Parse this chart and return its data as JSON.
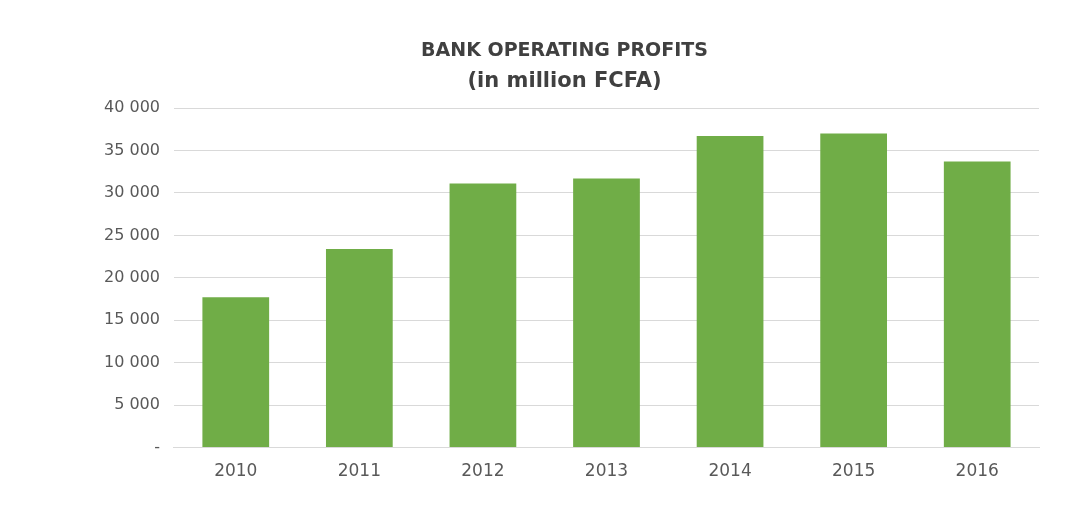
{
  "chart_data": {
    "type": "bar",
    "title": "BANK OPERATING PROFITS",
    "subtitle": "(in million FCFA)",
    "categories": [
      "2010",
      "2011",
      "2012",
      "2013",
      "2014",
      "2015",
      "2016"
    ],
    "values": [
      17700,
      23400,
      31100,
      31700,
      36700,
      37000,
      33700
    ],
    "color": "#70ad47",
    "ylim": [
      0,
      40000
    ],
    "yticks": [
      {
        "value": 0,
        "label": "-"
      },
      {
        "value": 5000,
        "label": "5 000"
      },
      {
        "value": 10000,
        "label": "10 000"
      },
      {
        "value": 15000,
        "label": "15 000"
      },
      {
        "value": 20000,
        "label": "20 000"
      },
      {
        "value": 25000,
        "label": "25 000"
      },
      {
        "value": 30000,
        "label": "30 000"
      },
      {
        "value": 35000,
        "label": "35 000"
      },
      {
        "value": 40000,
        "label": "40 000"
      }
    ],
    "grid": "y"
  }
}
